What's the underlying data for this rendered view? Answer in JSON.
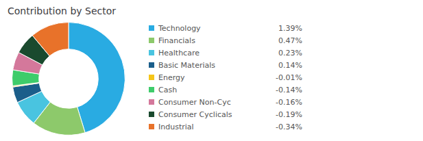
{
  "chart_data": {
    "type": "pie",
    "title": "Contribution by Sector",
    "categories": [
      "Technology",
      "Financials",
      "Healthcare",
      "Basic Materials",
      "Energy",
      "Cash",
      "Consumer Non-Cyc",
      "Consumer Cyclicals",
      "Industrial"
    ],
    "values": [
      1.39,
      0.47,
      0.23,
      0.14,
      -0.01,
      -0.14,
      -0.16,
      -0.19,
      -0.34
    ],
    "value_labels": [
      "1.39%",
      "0.47%",
      "0.23%",
      "0.14%",
      "-0.01%",
      "-0.14%",
      "-0.16%",
      "-0.19%",
      "-0.34%"
    ],
    "colors": [
      "#29ABE2",
      "#8DC96B",
      "#49C4E0",
      "#1B5E8A",
      "#F5C518",
      "#3ECC6A",
      "#D4789B",
      "#1A4A2E",
      "#E8722A"
    ],
    "legend": "right"
  }
}
